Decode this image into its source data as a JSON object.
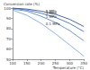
{
  "chart_data": {
    "type": "line",
    "x_label": "Temperature (°C)",
    "y_label": "Conversion rate (%)",
    "x": [
      100,
      150,
      200,
      250,
      300,
      350
    ],
    "xlim": [
      100,
      350
    ],
    "xticks": [
      100,
      150,
      200,
      250,
      300,
      350
    ],
    "ylim": [
      50,
      100
    ],
    "yticks": [
      50,
      60,
      70,
      80,
      90,
      100
    ],
    "grid": false,
    "series": [
      {
        "name": "5 MPa",
        "color": "#1f3f8f",
        "values": [
          100,
          99,
          97,
          94,
          89,
          82
        ]
      },
      {
        "name": "3 MPa",
        "color": "#2f5faf",
        "values": [
          100,
          98,
          95,
          91,
          85,
          77
        ]
      },
      {
        "name": "1 MPa",
        "color": "#4a7fcc",
        "values": [
          99,
          97,
          92,
          86,
          78,
          68
        ]
      },
      {
        "name": "0.1 MPa",
        "color": "#6f9fe0",
        "values": [
          98,
          93,
          85,
          75,
          64,
          53
        ]
      }
    ]
  }
}
